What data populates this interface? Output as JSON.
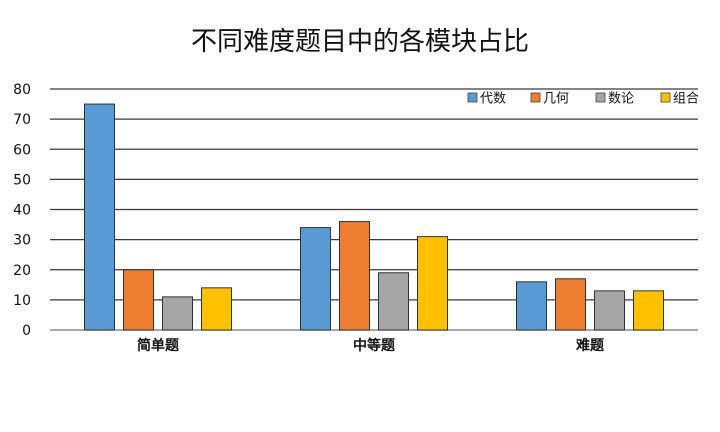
{
  "chart_data": {
    "type": "bar",
    "title": "不同难度题目中的各模块占比",
    "categories": [
      "简单题",
      "中等题",
      "难题"
    ],
    "series": [
      {
        "name": "代数",
        "values": [
          75,
          34,
          16
        ],
        "color": "#5b9bd5"
      },
      {
        "name": "几何",
        "values": [
          20,
          36,
          17
        ],
        "color": "#ed7d31"
      },
      {
        "name": "数论",
        "values": [
          11,
          19,
          13
        ],
        "color": "#a5a5a5"
      },
      {
        "name": "组合",
        "values": [
          14,
          31,
          13
        ],
        "color": "#ffc000"
      }
    ],
    "ylim": [
      0,
      80
    ],
    "yticks": [
      0,
      10,
      20,
      30,
      40,
      50,
      60,
      70,
      80
    ],
    "grid": true,
    "legend": "top-right"
  }
}
